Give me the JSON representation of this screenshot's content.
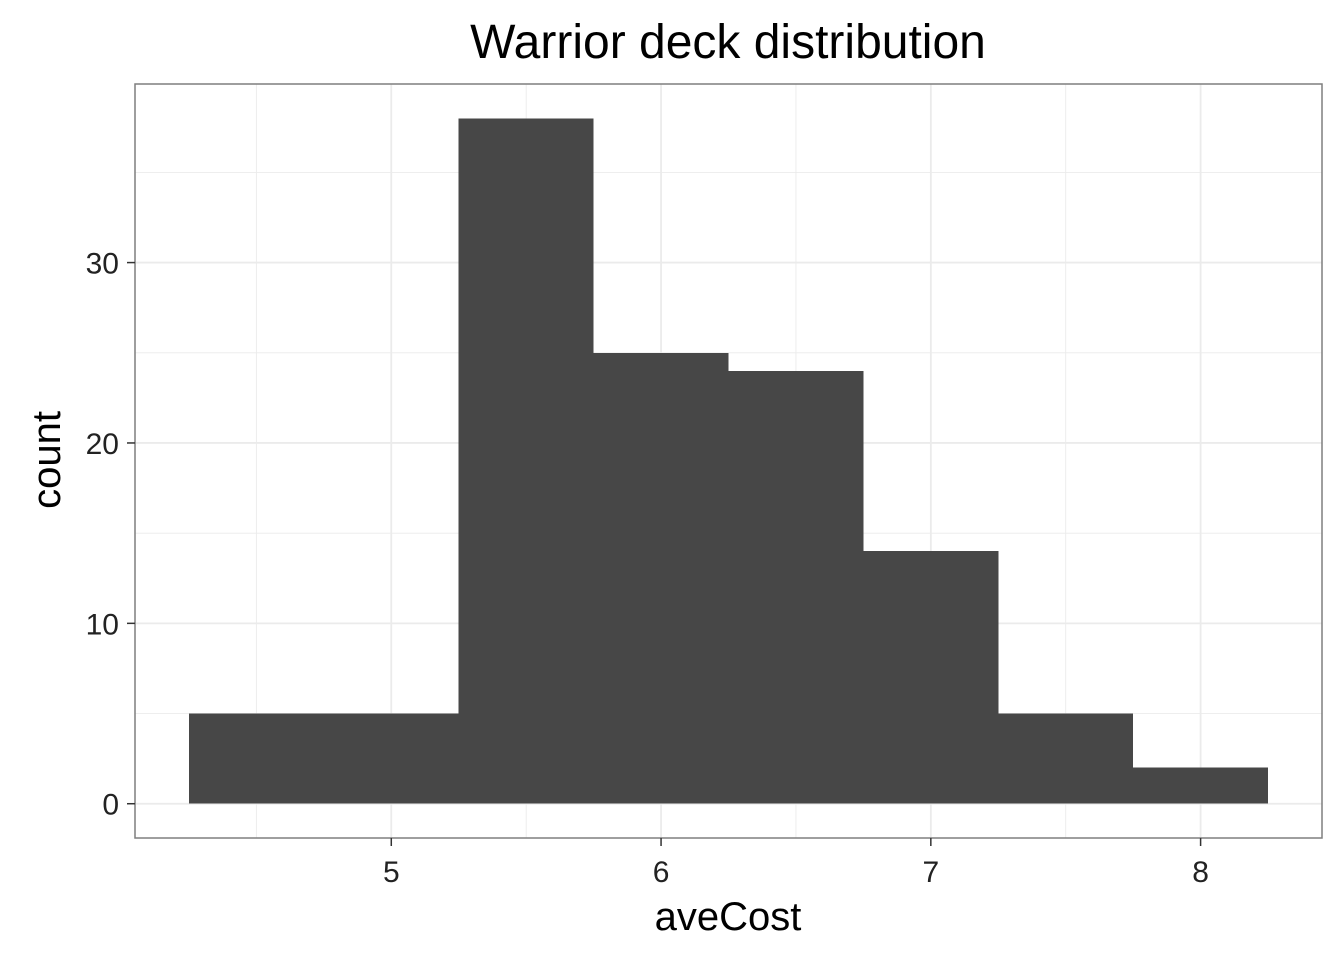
{
  "chart_data": {
    "type": "bar",
    "title": "Warrior deck distribution",
    "xlabel": "aveCost",
    "ylabel": "count",
    "bins": [
      {
        "start": 4.25,
        "end": 4.75,
        "count": 5
      },
      {
        "start": 4.75,
        "end": 5.25,
        "count": 5
      },
      {
        "start": 5.25,
        "end": 5.75,
        "count": 38
      },
      {
        "start": 5.75,
        "end": 6.25,
        "count": 25
      },
      {
        "start": 6.25,
        "end": 6.75,
        "count": 24
      },
      {
        "start": 6.75,
        "end": 7.25,
        "count": 14
      },
      {
        "start": 7.25,
        "end": 7.75,
        "count": 5
      },
      {
        "start": 7.75,
        "end": 8.25,
        "count": 2
      }
    ],
    "xlim": [
      4.05,
      8.45
    ],
    "ylim": [
      -1.9,
      39.9
    ],
    "x_ticks": [
      5,
      6,
      7,
      8
    ],
    "x_minor": [
      4.5,
      5.5,
      6.5,
      7.5
    ],
    "y_ticks": [
      0,
      10,
      20,
      30
    ],
    "y_minor": [
      5,
      15,
      25,
      35
    ],
    "grid": true,
    "bar_color": "#474747",
    "grid_color": "#ebebeb",
    "border_color": "#7f7f7f"
  }
}
